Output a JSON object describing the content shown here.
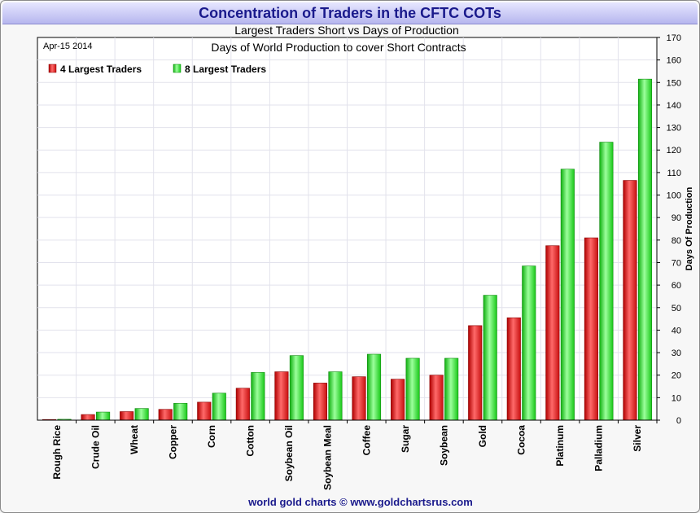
{
  "chart_data": {
    "type": "bar",
    "title": "Concentration of Traders in the CFTC COTs",
    "subtitle": "Largest Traders Short vs Days of Production",
    "subtitle2": "Days of World Production to cover Short Contracts",
    "date_label": "Apr-15  2014",
    "ylabel": "Days Of Production",
    "ylim": [
      0,
      170
    ],
    "yticks": [
      0,
      10,
      20,
      30,
      40,
      50,
      60,
      70,
      80,
      90,
      100,
      110,
      120,
      130,
      140,
      150,
      160,
      170
    ],
    "grid": true,
    "legend_position": "top-left",
    "categories": [
      "Rough Rice",
      "Crude Oil",
      "Wheat",
      "Copper",
      "Corn",
      "Cotton",
      "Soybean Oil",
      "Soybean Meal",
      "Coffee",
      "Sugar",
      "Soybean",
      "Gold",
      "Cocoa",
      "Platinum",
      "Palladium",
      "Silver"
    ],
    "series": [
      {
        "name": "4 Largest Traders",
        "color": "#ee2222",
        "values": [
          0.3,
          2.5,
          3.8,
          4.8,
          8,
          14.2,
          21.5,
          16.5,
          19.3,
          18.2,
          20,
          42,
          45.5,
          77.5,
          81,
          106.5
        ]
      },
      {
        "name": "8 Largest Traders",
        "color": "#22ee22",
        "values": [
          0.4,
          3.6,
          5.2,
          7.5,
          12,
          21.2,
          28.7,
          21.5,
          29.3,
          27.5,
          27.5,
          55.5,
          68.5,
          111.5,
          123.5,
          151.5
        ]
      }
    ],
    "footer": "world gold charts © www.goldchartsrus.com"
  }
}
